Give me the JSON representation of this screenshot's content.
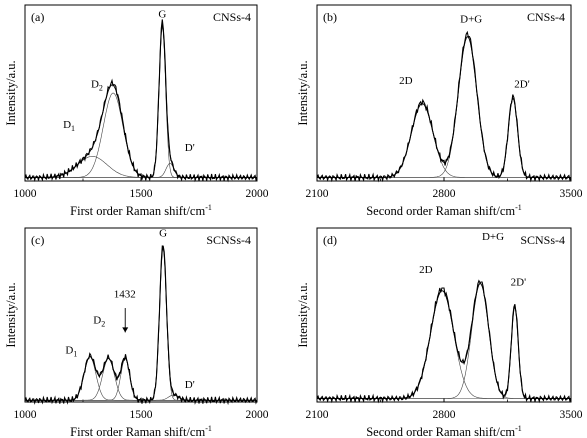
{
  "chart_data": [
    {
      "id": "a",
      "type": "line",
      "panel_label": "(a)",
      "sample": "CNSs-4",
      "xlabel_main": "First order Raman shift/cm",
      "xlabel_sup": "-1",
      "ylabel": "Intensity/a.u.",
      "xlim": [
        1000,
        2000
      ],
      "ylim": [
        0,
        1
      ],
      "xticks": [
        1000,
        1500,
        2000
      ],
      "peaks": [
        {
          "name": "D",
          "sub": "1",
          "center": 1290,
          "height": 0.12,
          "width": 150,
          "lx": 1190,
          "ly": 0.3
        },
        {
          "name": "D",
          "sub": "2",
          "center": 1380,
          "height": 0.48,
          "width": 100,
          "lx": 1310,
          "ly": 0.53
        },
        {
          "name": "G",
          "center": 1592,
          "height": 0.86,
          "width": 33,
          "lx": 1592,
          "ly": 0.93
        },
        {
          "name": "D'",
          "center": 1625,
          "height": 0.08,
          "width": 40,
          "lx": 1710,
          "ly": 0.17
        }
      ],
      "baseline": 0.02
    },
    {
      "id": "b",
      "type": "line",
      "panel_label": "(b)",
      "sample": "CNSs-4",
      "xlabel_main": "Second order Raman shift/cm",
      "xlabel_sup": "-1",
      "ylabel": "Intensity/a.u.",
      "xlim": [
        2100,
        3500
      ],
      "ylim": [
        0,
        1
      ],
      "xticks": [
        2100,
        2800,
        3500
      ],
      "peaks": [
        {
          "name": "2D",
          "center": 2680,
          "height": 0.42,
          "width": 140,
          "lx": 2590,
          "ly": 0.55
        },
        {
          "name": "D+G",
          "center": 2930,
          "height": 0.8,
          "width": 120,
          "lx": 2950,
          "ly": 0.9
        },
        {
          "name": "2D'",
          "center": 3180,
          "height": 0.45,
          "width": 60,
          "lx": 3230,
          "ly": 0.53
        }
      ],
      "baseline": 0.02
    },
    {
      "id": "c",
      "type": "line",
      "panel_label": "(c)",
      "sample": "SCNSs-4",
      "xlabel_main": "First order Raman shift/cm",
      "xlabel_sup": "-1",
      "ylabel": "Intensity/a.u.",
      "xlim": [
        1000,
        2000
      ],
      "ylim": [
        0,
        1
      ],
      "xticks": [
        1000,
        1500,
        2000
      ],
      "peaks": [
        {
          "name": "D",
          "sub": "1",
          "center": 1280,
          "height": 0.25,
          "width": 60,
          "lx": 1200,
          "ly": 0.28
        },
        {
          "name": "D",
          "sub": "2",
          "center": 1360,
          "height": 0.24,
          "width": 60,
          "lx": 1320,
          "ly": 0.45
        },
        {
          "name": "1432",
          "center": 1432,
          "height": 0.24,
          "width": 45,
          "lx": 1430,
          "ly": 0.6
        },
        {
          "name": "G",
          "center": 1595,
          "height": 0.88,
          "width": 35,
          "lx": 1595,
          "ly": 0.95
        },
        {
          "name": "D'",
          "center": 1640,
          "height": 0.03,
          "width": 50,
          "lx": 1710,
          "ly": 0.08
        }
      ],
      "arrow": {
        "x": 1432,
        "y_from": 0.54,
        "y_to": 0.4
      },
      "baseline": 0.01
    },
    {
      "id": "d",
      "type": "line",
      "panel_label": "(d)",
      "sample": "SCNSs-4",
      "xlabel_main": "Second order Raman shift/cm",
      "xlabel_sup": "-1",
      "ylabel": "Intensity/a.u.",
      "xlim": [
        2100,
        3500
      ],
      "ylim": [
        0,
        1
      ],
      "xticks": [
        2100,
        2800,
        3500
      ],
      "peaks": [
        {
          "name": "2D",
          "center": 2790,
          "height": 0.62,
          "width": 150,
          "lx": 2700,
          "ly": 0.74
        },
        {
          "name": "D+G",
          "center": 3000,
          "height": 0.66,
          "width": 110,
          "lx": 3070,
          "ly": 0.93
        },
        {
          "name": "2D'",
          "center": 3190,
          "height": 0.53,
          "width": 45,
          "lx": 3210,
          "ly": 0.67
        }
      ],
      "baseline": 0.02
    }
  ]
}
